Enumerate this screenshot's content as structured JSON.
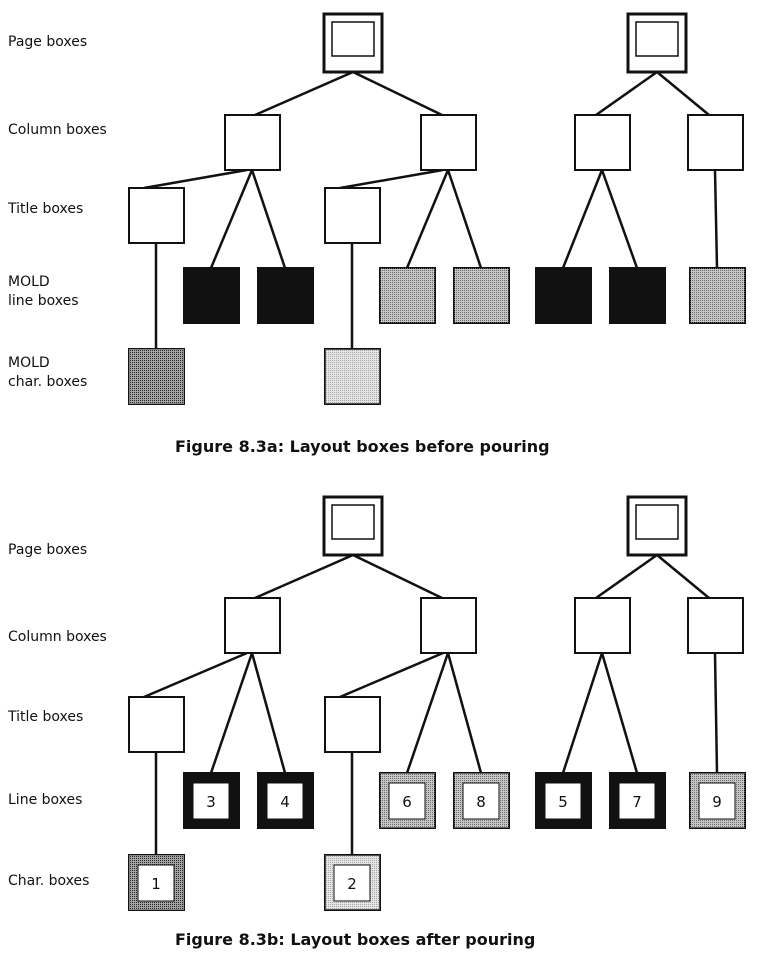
{
  "figures": [
    {
      "caption": "Figure 8.3a:  Layout boxes before pouring",
      "row_labels": [
        "Page boxes",
        "Column boxes",
        "Title boxes",
        "MOLD\nline boxes",
        "MOLD\nchar. boxes"
      ],
      "numbers": [
        "",
        "",
        "",
        "",
        "",
        "",
        "",
        "",
        ""
      ]
    },
    {
      "caption": "Figure 8.3b:  Layout boxes after pouring",
      "row_labels": [
        "Page boxes",
        "Column boxes",
        "Title boxes",
        "Line boxes",
        "Char. boxes"
      ],
      "numbers": [
        "3",
        "4",
        "6",
        "8",
        "5",
        "7",
        "9",
        "1",
        "2"
      ]
    }
  ],
  "fills": {
    "black": "#111111",
    "medium_gray": "#a8a8a8",
    "dark_gray": "#4a4a4a",
    "light_gray": "#dcdcdc",
    "white": "#ffffff"
  },
  "leaf_fills": [
    "black",
    "black",
    "medium_gray",
    "medium_gray",
    "black",
    "black",
    "medium_gray",
    "dark_gray",
    "light_gray"
  ]
}
